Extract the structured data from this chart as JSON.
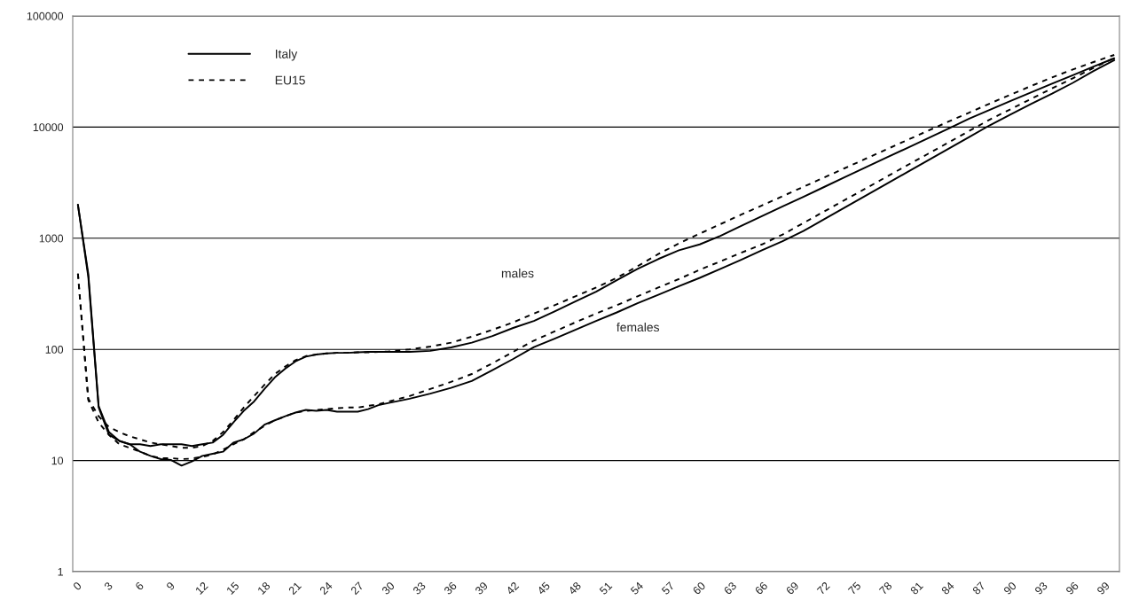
{
  "chart_data": {
    "type": "line",
    "log": "y",
    "grid": "y",
    "legend": "top left",
    "marker": "none",
    "x": [
      0,
      1,
      2,
      3,
      4,
      5,
      6,
      7,
      8,
      9,
      10,
      11,
      12,
      13,
      14,
      15,
      16,
      17,
      18,
      19,
      20,
      21,
      22,
      23,
      24,
      25,
      26,
      27,
      28,
      29,
      30,
      32,
      34,
      36,
      38,
      40,
      42,
      44,
      46,
      48,
      50,
      52,
      54,
      56,
      58,
      60,
      62,
      64,
      66,
      68,
      70,
      72,
      74,
      76,
      78,
      80,
      82,
      84,
      86,
      88,
      90,
      92,
      94,
      96,
      98,
      100
    ],
    "xlim": [
      -0.5,
      100.5
    ],
    "xticks": [
      0,
      3,
      6,
      9,
      12,
      15,
      18,
      21,
      24,
      27,
      30,
      33,
      36,
      39,
      42,
      45,
      48,
      51,
      54,
      57,
      60,
      63,
      66,
      69,
      72,
      75,
      78,
      81,
      84,
      87,
      90,
      93,
      96,
      99
    ],
    "ylim": [
      1,
      100000
    ],
    "yticks": [
      1,
      10,
      100,
      1000,
      10000,
      100000
    ],
    "series": [
      {
        "name": "Italy",
        "color": "#000000",
        "line_style": "solid",
        "values": [
          2000,
          480,
          31,
          18,
          15,
          14,
          14,
          13.5,
          14,
          14,
          14,
          13.5,
          14,
          14.5,
          17,
          22,
          28,
          34,
          44,
          56,
          67,
          78,
          86,
          90,
          92,
          93,
          93,
          94,
          95,
          95,
          95,
          95,
          97,
          104,
          115,
          132,
          156,
          180,
          220,
          270,
          330,
          420,
          530,
          650,
          780,
          880,
          1050,
          1290,
          1580,
          1930,
          2360,
          2890,
          3540,
          4330,
          5300,
          6480,
          7930,
          9700,
          11900,
          14300,
          17200,
          20600,
          24600,
          29300,
          35000,
          41600
        ]
      },
      {
        "name": "EU15",
        "color": "#000000",
        "line_style": "dashed",
        "values": [
          480,
          36,
          25,
          20,
          18,
          16.5,
          15.5,
          14.5,
          14,
          13.5,
          13,
          13,
          13.5,
          15,
          18,
          23,
          30,
          38,
          48,
          60,
          70,
          80,
          87,
          90,
          92,
          93,
          93,
          94,
          94,
          95,
          96,
          100,
          106,
          115,
          130,
          150,
          175,
          210,
          250,
          300,
          360,
          440,
          560,
          720,
          900,
          1100,
          1340,
          1630,
          1970,
          2390,
          2900,
          3520,
          4270,
          5180,
          6290,
          7630,
          9250,
          11200,
          13500,
          16300,
          19600,
          23500,
          28000,
          33000,
          38500,
          44600
        ]
      },
      {
        "color": "#000000",
        "line_style": "solid",
        "values": [
          2000,
          450,
          30,
          17,
          15,
          14,
          12,
          11,
          10.3,
          10.1,
          9,
          9.8,
          11,
          11.5,
          12,
          14.5,
          15.5,
          17.5,
          21,
          23,
          25,
          27,
          28.5,
          28,
          28.5,
          27.5,
          27.5,
          27.5,
          29,
          31.5,
          33,
          36,
          40,
          45,
          52,
          65,
          82,
          105,
          125,
          150,
          180,
          215,
          260,
          310,
          370,
          440,
          530,
          640,
          780,
          940,
          1160,
          1480,
          1890,
          2410,
          3070,
          3920,
          5000,
          6380,
          8130,
          10400,
          13000,
          16200,
          20000,
          25000,
          32000,
          40000
        ]
      },
      {
        "color": "#000000",
        "line_style": "dashed",
        "values": [
          480,
          35,
          22,
          17,
          14,
          13,
          12,
          11,
          10.5,
          10.5,
          10.3,
          10.4,
          10.8,
          11.3,
          12.5,
          14,
          15.5,
          18,
          20.5,
          23,
          25,
          27,
          28,
          28.5,
          29,
          29.5,
          30,
          30,
          31,
          32,
          34,
          38,
          44,
          51,
          60,
          75,
          95,
          120,
          145,
          175,
          210,
          250,
          300,
          360,
          430,
          520,
          620,
          740,
          880,
          1080,
          1370,
          1740,
          2210,
          2800,
          3560,
          4520,
          5730,
          7270,
          9230,
          11700,
          14500,
          18000,
          22300,
          27500,
          34000,
          42000
        ]
      }
    ],
    "annotations": [
      "males",
      "females"
    ]
  }
}
